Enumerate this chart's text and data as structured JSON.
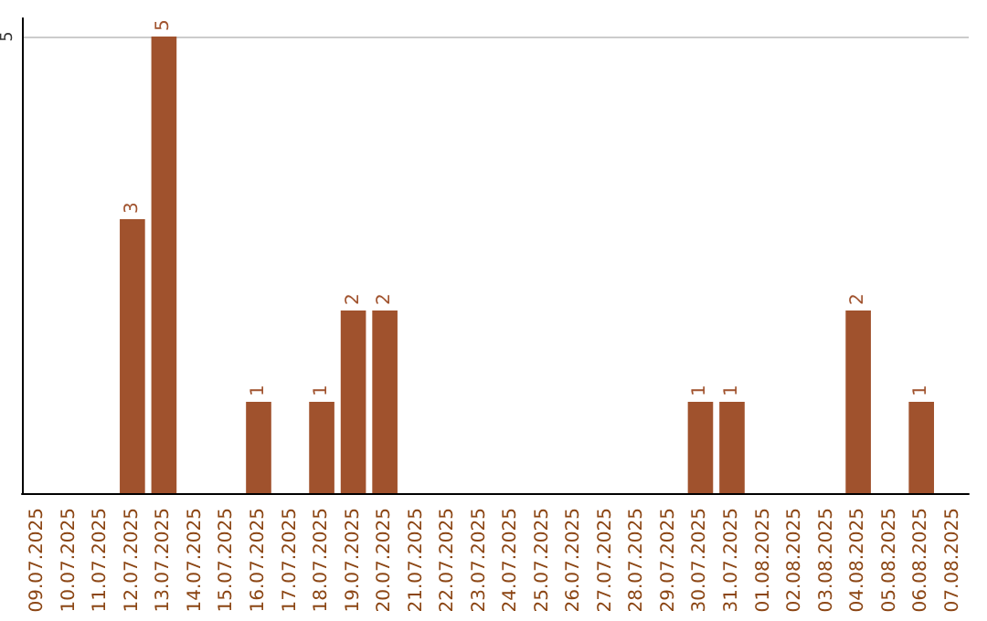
{
  "chart_data": {
    "type": "bar",
    "categories": [
      "09.07.2025",
      "10.07.2025",
      "11.07.2025",
      "12.07.2025",
      "13.07.2025",
      "14.07.2025",
      "15.07.2025",
      "16.07.2025",
      "17.07.2025",
      "18.07.2025",
      "19.07.2025",
      "20.07.2025",
      "21.07.2025",
      "22.07.2025",
      "23.07.2025",
      "24.07.2025",
      "25.07.2025",
      "26.07.2025",
      "27.07.2025",
      "28.07.2025",
      "29.07.2025",
      "30.07.2025",
      "31.07.2025",
      "01.08.2025",
      "02.08.2025",
      "03.08.2025",
      "04.08.2025",
      "05.08.2025",
      "06.08.2025",
      "07.08.2025"
    ],
    "values": [
      null,
      null,
      null,
      3,
      5,
      null,
      null,
      1,
      null,
      1,
      2,
      2,
      null,
      null,
      null,
      null,
      null,
      null,
      null,
      null,
      null,
      1,
      1,
      null,
      null,
      null,
      2,
      null,
      1,
      null
    ],
    "color": "#a0522d",
    "ylim": [
      0,
      5.2
    ],
    "yticks": [
      5
    ],
    "grid": "y",
    "data_labels": true
  }
}
